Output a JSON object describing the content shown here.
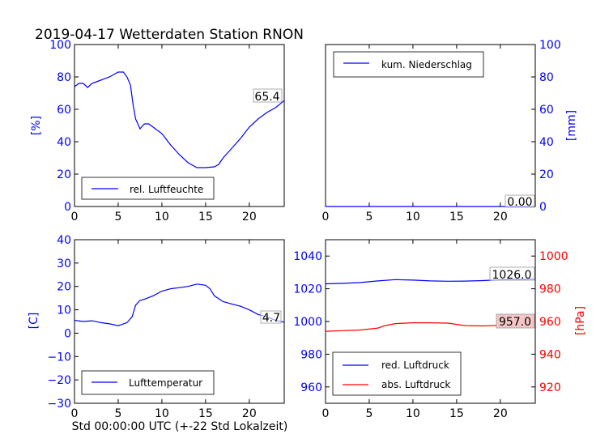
{
  "title": "2019-04-17 Wetterdaten Station RNON",
  "colors": {
    "blue": "#0000ff",
    "red": "#ff0000",
    "black": "#000000",
    "latest_bg": "#f4c6c6"
  },
  "chart_data": [
    {
      "id": "humidity",
      "type": "line",
      "ylabel": "[%]",
      "xlim": [
        0,
        24
      ],
      "ylim": [
        0,
        100
      ],
      "x_ticks": [
        "0",
        "5",
        "10",
        "15",
        "20"
      ],
      "y_ticks": [
        "0",
        "20",
        "40",
        "60",
        "80",
        "100"
      ],
      "legend_position": "lower-left",
      "latest_value": "65.4",
      "series": [
        {
          "name": "rel. Luftfeuchte",
          "color": "#0000ff",
          "points": [
            [
              0,
              74
            ],
            [
              0.5,
              76
            ],
            [
              1,
              76
            ],
            [
              1.5,
              73.5
            ],
            [
              2,
              76
            ],
            [
              3,
              78
            ],
            [
              4,
              80
            ],
            [
              5,
              83
            ],
            [
              5.6,
              83
            ],
            [
              6,
              80
            ],
            [
              6.4,
              75
            ],
            [
              6.7,
              63
            ],
            [
              7,
              54
            ],
            [
              7.5,
              48
            ],
            [
              8,
              51
            ],
            [
              8.5,
              51
            ],
            [
              9,
              49
            ],
            [
              10,
              45
            ],
            [
              11,
              38
            ],
            [
              12,
              32
            ],
            [
              13,
              27
            ],
            [
              14,
              24
            ],
            [
              15,
              24
            ],
            [
              16,
              24.5
            ],
            [
              16.5,
              26
            ],
            [
              17,
              30
            ],
            [
              18,
              36
            ],
            [
              19,
              42
            ],
            [
              20,
              49
            ],
            [
              21,
              54
            ],
            [
              22,
              58
            ],
            [
              23,
              61
            ],
            [
              24,
              65.4
            ]
          ]
        }
      ]
    },
    {
      "id": "precipitation",
      "type": "line",
      "ylabel": "[mm]",
      "xlim": [
        0,
        24
      ],
      "ylim": [
        0,
        100
      ],
      "x_ticks": [
        "0",
        "5",
        "10",
        "15",
        "20"
      ],
      "y_ticks": [
        "0",
        "20",
        "40",
        "60",
        "80",
        "100"
      ],
      "legend_position": "upper-left",
      "latest_value": "0.00",
      "series": [
        {
          "name": "kum. Niederschlag",
          "color": "#0000ff",
          "points": [
            [
              0,
              0
            ],
            [
              24,
              0
            ]
          ]
        }
      ]
    },
    {
      "id": "temperature",
      "type": "line",
      "ylabel": "[C]",
      "xlabel": "Std 00:00:00 UTC (+-22 Std Lokalzeit)",
      "xlim": [
        0,
        24
      ],
      "ylim": [
        -30,
        40
      ],
      "x_ticks": [
        "0",
        "5",
        "10",
        "15",
        "20"
      ],
      "y_ticks": [
        "−30",
        "−20",
        "−10",
        "0",
        "10",
        "20",
        "30",
        "40"
      ],
      "legend_position": "lower-left",
      "latest_value": "4.7",
      "series": [
        {
          "name": "Lufttemperatur",
          "color": "#0000ff",
          "points": [
            [
              0,
              5.5
            ],
            [
              1,
              5
            ],
            [
              2,
              5.3
            ],
            [
              3,
              4.5
            ],
            [
              4,
              4
            ],
            [
              5,
              3.2
            ],
            [
              6,
              4.5
            ],
            [
              6.6,
              7
            ],
            [
              7,
              12
            ],
            [
              7.5,
              14
            ],
            [
              8,
              14.5
            ],
            [
              9,
              16
            ],
            [
              10,
              18
            ],
            [
              11,
              19
            ],
            [
              12,
              19.5
            ],
            [
              13,
              20
            ],
            [
              14,
              21
            ],
            [
              15,
              20.5
            ],
            [
              15.5,
              19
            ],
            [
              16,
              16
            ],
            [
              17,
              13.5
            ],
            [
              18,
              12.5
            ],
            [
              19,
              11.5
            ],
            [
              20,
              10
            ],
            [
              21,
              8
            ],
            [
              22,
              7
            ],
            [
              23,
              5.5
            ],
            [
              24,
              4.7
            ]
          ]
        }
      ]
    },
    {
      "id": "pressure",
      "type": "line",
      "xlim": [
        0,
        24
      ],
      "left_ylim": [
        950,
        1050
      ],
      "right_ylim": [
        910,
        1010
      ],
      "ylabel_right": "[hPa]",
      "x_ticks": [
        "0",
        "5",
        "10",
        "15",
        "20"
      ],
      "left_y_ticks": [
        "960",
        "980",
        "1000",
        "1020",
        "1040"
      ],
      "right_y_ticks": [
        "920",
        "940",
        "960",
        "980",
        "1000"
      ],
      "legend_position": "lower-left",
      "latest_values": {
        "red": "1026.0",
        "abs": "957.0"
      },
      "series": [
        {
          "name": "red. Luftdruck",
          "color": "#0000ff",
          "axis": "left",
          "points": [
            [
              0,
              1023
            ],
            [
              2,
              1023.3
            ],
            [
              4,
              1023.8
            ],
            [
              6,
              1024.8
            ],
            [
              8,
              1025.6
            ],
            [
              10,
              1025.3
            ],
            [
              12,
              1024.8
            ],
            [
              14,
              1024.6
            ],
            [
              16,
              1024.7
            ],
            [
              18,
              1025
            ],
            [
              20,
              1025.5
            ],
            [
              22,
              1025.8
            ],
            [
              24,
              1026
            ]
          ]
        },
        {
          "name": "abs. Luftdruck",
          "color": "#ff0000",
          "axis": "right",
          "points": [
            [
              0,
              954
            ],
            [
              2,
              954.4
            ],
            [
              4,
              954.8
            ],
            [
              6,
              956
            ],
            [
              6.8,
              957.5
            ],
            [
              8,
              958.7
            ],
            [
              10,
              959.2
            ],
            [
              12,
              959.2
            ],
            [
              14,
              959
            ],
            [
              15,
              958.2
            ],
            [
              16,
              957.5
            ],
            [
              18,
              957.3
            ],
            [
              20,
              957.6
            ],
            [
              22,
              957.9
            ],
            [
              24,
              957
            ]
          ]
        }
      ]
    }
  ]
}
